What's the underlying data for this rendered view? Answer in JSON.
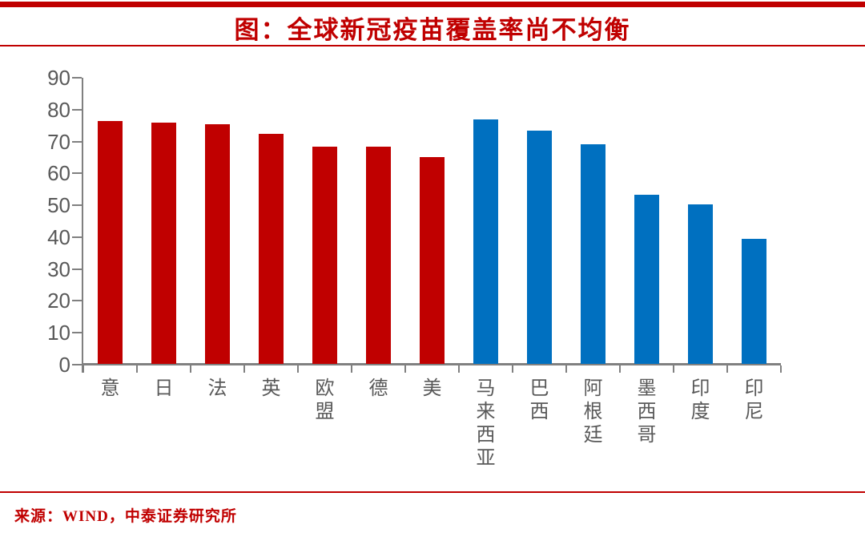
{
  "header": {
    "title": "图：全球新冠疫苗覆盖率尚不均衡"
  },
  "footer": {
    "source": "来源：WIND，中泰证券研究所"
  },
  "colors": {
    "accent_red": "#C00000",
    "bar_red": "#C00000",
    "bar_blue": "#0070C0",
    "axis_gray": "#808080",
    "tick_label_gray": "#595959"
  },
  "chart_data": {
    "type": "bar",
    "title": "图：全球新冠疫苗覆盖率尚不均衡",
    "categories": [
      "意",
      "日",
      "法",
      "英",
      "欧盟",
      "德",
      "美",
      "马来西亚",
      "巴西",
      "阿根廷",
      "墨西哥",
      "印度",
      "印尼"
    ],
    "values": [
      76.5,
      76.0,
      75.5,
      72.5,
      68.4,
      68.4,
      65.0,
      77.0,
      73.5,
      69.2,
      53.4,
      50.3,
      39.5
    ],
    "bar_colors": [
      "#C00000",
      "#C00000",
      "#C00000",
      "#C00000",
      "#C00000",
      "#C00000",
      "#C00000",
      "#0070C0",
      "#0070C0",
      "#0070C0",
      "#0070C0",
      "#0070C0",
      "#0070C0"
    ],
    "xlabel": "",
    "ylabel": "",
    "ylim": [
      0,
      90
    ],
    "ytick_step": 10,
    "ytick_labels": [
      "0",
      "10",
      "20",
      "30",
      "40",
      "50",
      "60",
      "70",
      "80",
      "90"
    ],
    "grid": false,
    "legend": "none",
    "label_orientation": "vertical-stacked"
  }
}
